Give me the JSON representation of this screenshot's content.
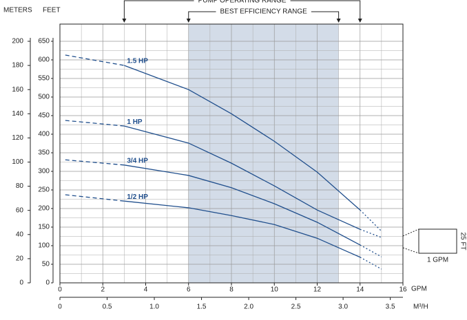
{
  "chart_data": {
    "type": "line",
    "xlabel": "GPM",
    "x2label": "M³/H",
    "ylabel": "FEET",
    "y2label": "METERS",
    "xlim": [
      0,
      16
    ],
    "xticks": [
      0,
      2,
      4,
      6,
      8,
      10,
      12,
      14,
      16
    ],
    "x2lim": [
      0,
      3.634
    ],
    "x2ticks": [
      0,
      0.5,
      {
        "value": 1,
        "label": "1.0"
      },
      1.5,
      {
        "value": 2,
        "label": "2.0"
      },
      2.5,
      {
        "value": 3,
        "label": "3.0"
      },
      3.5
    ],
    "ylim": [
      0,
      650
    ],
    "yticks": [
      0,
      50,
      100,
      150,
      200,
      250,
      300,
      350,
      400,
      450,
      500,
      550,
      600,
      650
    ],
    "y2lim": [
      0,
      200
    ],
    "y2ticks": [
      0,
      20,
      40,
      60,
      80,
      100,
      120,
      140,
      160,
      180,
      200
    ],
    "grid": true,
    "operating_range": {
      "label": "PUMP OPERATING RANGE",
      "x": [
        3,
        14
      ]
    },
    "efficiency_range": {
      "label": "BEST EFFICIENCY RANGE",
      "x": [
        6,
        13
      ],
      "color": "#d3dce8"
    },
    "scale_key": {
      "x_label": "1 GPM",
      "y_label": "25 FT"
    },
    "x": [
      0.25,
      3,
      6,
      8,
      10,
      12,
      14,
      15
    ],
    "series": [
      {
        "name": "1.5 HP",
        "color": "#1f4e8c",
        "values": [
          613,
          585,
          520,
          455,
          381,
          298,
          196,
          139
        ]
      },
      {
        "name": "1 HP",
        "color": "#1f4e8c",
        "values": [
          437,
          422,
          376,
          322,
          261,
          196,
          144,
          122
        ]
      },
      {
        "name": "3/4 HP",
        "color": "#1f4e8c",
        "values": [
          331,
          317,
          289,
          256,
          213,
          163,
          102,
          70
        ]
      },
      {
        "name": "1/2 HP",
        "color": "#1f4e8c",
        "values": [
          237,
          220,
          202,
          181,
          157,
          120,
          69,
          37
        ]
      }
    ]
  }
}
